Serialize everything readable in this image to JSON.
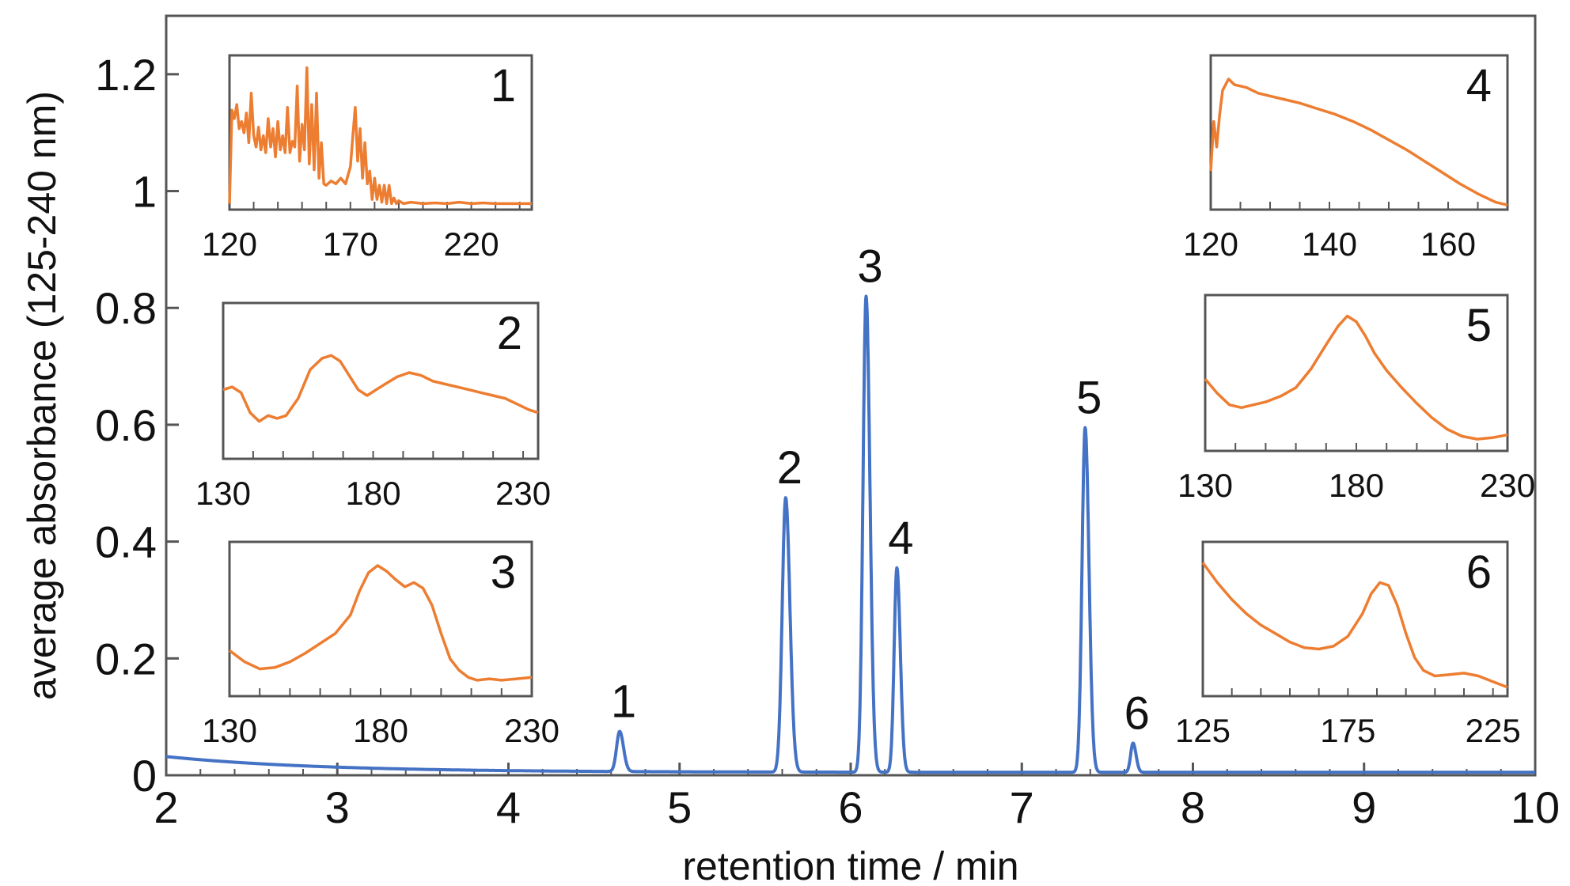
{
  "chart_data": [
    {
      "type": "line",
      "xlabel": "retention time / min",
      "ylabel": "average absorbance (125-240 nm)",
      "xlim": [
        2,
        10
      ],
      "ylim": [
        0,
        1.3
      ],
      "xticks": [
        "2",
        "3",
        "4",
        "5",
        "6",
        "7",
        "8",
        "9",
        "10"
      ],
      "yticks": [
        {
          "value": 0,
          "label": "0"
        },
        {
          "value": 0.2,
          "label": "0.2"
        },
        {
          "value": 0.4,
          "label": "0.4"
        },
        {
          "value": 0.6,
          "label": "0.6"
        },
        {
          "value": 0.8,
          "label": "0.8"
        },
        {
          "value": 1.0,
          "label": "1"
        },
        {
          "value": 1.2,
          "label": "1.2"
        }
      ],
      "grid": false,
      "color": "#4472c4",
      "peaks": [
        {
          "label": "1",
          "x": 4.65,
          "y": 0.075
        },
        {
          "label": "2",
          "x": 5.62,
          "y": 0.475
        },
        {
          "label": "3",
          "x": 6.09,
          "y": 0.82
        },
        {
          "label": "4",
          "x": 6.27,
          "y": 0.355
        },
        {
          "label": "5",
          "x": 7.37,
          "y": 0.595
        },
        {
          "label": "6",
          "x": 7.65,
          "y": 0.055
        }
      ]
    },
    {
      "type": "line",
      "label": "1",
      "color": "#ed7d31",
      "xlim": [
        120,
        245
      ],
      "xticks": [
        "120",
        "170",
        "220"
      ],
      "x": [
        120,
        121,
        122,
        123,
        124,
        125,
        126,
        127,
        128,
        129,
        130,
        131,
        132,
        133,
        134,
        135,
        136,
        137,
        138,
        139,
        140,
        141,
        142,
        143,
        144,
        145,
        146,
        147,
        148,
        149,
        150,
        151,
        152,
        153,
        154,
        155,
        156,
        157,
        158,
        159,
        160,
        162,
        164,
        166,
        168,
        170,
        171,
        172,
        173,
        174,
        175,
        176,
        177,
        178,
        179,
        180,
        181,
        182,
        183,
        184,
        185,
        186,
        187,
        188,
        189,
        190,
        192,
        195,
        200,
        205,
        210,
        215,
        220,
        225,
        230,
        235,
        240,
        245
      ],
      "y": [
        0.02,
        0.68,
        0.62,
        0.72,
        0.55,
        0.6,
        0.52,
        0.66,
        0.45,
        0.8,
        0.5,
        0.42,
        0.56,
        0.4,
        0.5,
        0.38,
        0.62,
        0.42,
        0.55,
        0.35,
        0.6,
        0.4,
        0.5,
        0.38,
        0.7,
        0.38,
        0.46,
        0.42,
        0.85,
        0.32,
        0.58,
        0.4,
        0.98,
        0.3,
        0.72,
        0.26,
        0.8,
        0.2,
        0.45,
        0.16,
        0.15,
        0.18,
        0.16,
        0.2,
        0.16,
        0.28,
        0.5,
        0.7,
        0.32,
        0.55,
        0.2,
        0.45,
        0.16,
        0.25,
        0.05,
        0.2,
        0.05,
        0.15,
        0.03,
        0.15,
        0.02,
        0.15,
        0.02,
        0.06,
        0.02,
        0.04,
        0.02,
        0.03,
        0.02,
        0.025,
        0.02,
        0.03,
        0.02,
        0.025,
        0.02,
        0.02,
        0.02,
        0.02
      ]
    },
    {
      "type": "line",
      "label": "2",
      "color": "#ed7d31",
      "xlim": [
        130,
        235
      ],
      "xticks": [
        "130",
        "180",
        "230"
      ],
      "x": [
        130,
        133,
        136,
        139,
        142,
        145,
        148,
        151,
        155,
        159,
        163,
        166,
        169,
        172,
        175,
        178,
        181,
        184,
        188,
        192,
        196,
        200,
        204,
        208,
        212,
        216,
        220,
        224,
        228,
        232,
        235
      ],
      "y": [
        0.46,
        0.48,
        0.44,
        0.3,
        0.24,
        0.28,
        0.26,
        0.28,
        0.4,
        0.6,
        0.68,
        0.7,
        0.66,
        0.56,
        0.46,
        0.42,
        0.46,
        0.5,
        0.55,
        0.58,
        0.56,
        0.52,
        0.5,
        0.48,
        0.46,
        0.44,
        0.42,
        0.4,
        0.36,
        0.32,
        0.3
      ]
    },
    {
      "type": "line",
      "label": "3",
      "color": "#ed7d31",
      "xlim": [
        130,
        230
      ],
      "xticks": [
        "130",
        "180",
        "230"
      ],
      "x": [
        130,
        135,
        140,
        145,
        150,
        155,
        160,
        165,
        170,
        173,
        176,
        179,
        182,
        185,
        188,
        191,
        194,
        197,
        200,
        203,
        206,
        209,
        212,
        216,
        220,
        225,
        230
      ],
      "y": [
        0.3,
        0.22,
        0.17,
        0.18,
        0.22,
        0.28,
        0.35,
        0.42,
        0.55,
        0.72,
        0.85,
        0.9,
        0.86,
        0.8,
        0.75,
        0.78,
        0.74,
        0.62,
        0.42,
        0.24,
        0.16,
        0.11,
        0.09,
        0.1,
        0.09,
        0.1,
        0.11
      ]
    },
    {
      "type": "line",
      "label": "4",
      "color": "#ed7d31",
      "xlim": [
        120,
        170
      ],
      "xticks": [
        "120",
        "140",
        "160"
      ],
      "x": [
        120,
        120.5,
        121,
        121.5,
        122,
        123,
        124,
        126,
        128,
        130,
        132,
        135,
        138,
        141,
        144,
        147,
        150,
        153,
        156,
        159,
        162,
        165,
        168,
        170
      ],
      "y": [
        0.25,
        0.6,
        0.42,
        0.65,
        0.82,
        0.9,
        0.86,
        0.84,
        0.8,
        0.78,
        0.76,
        0.73,
        0.69,
        0.65,
        0.6,
        0.54,
        0.47,
        0.4,
        0.32,
        0.24,
        0.16,
        0.09,
        0.03,
        0.01
      ]
    },
    {
      "type": "line",
      "label": "5",
      "color": "#ed7d31",
      "xlim": [
        130,
        230
      ],
      "xticks": [
        "130",
        "180",
        "230"
      ],
      "x": [
        130,
        134,
        138,
        142,
        146,
        150,
        155,
        160,
        165,
        170,
        174,
        177,
        180,
        183,
        186,
        190,
        195,
        200,
        205,
        210,
        215,
        220,
        225,
        230
      ],
      "y": [
        0.48,
        0.38,
        0.3,
        0.28,
        0.3,
        0.32,
        0.36,
        0.42,
        0.55,
        0.72,
        0.85,
        0.92,
        0.88,
        0.78,
        0.66,
        0.54,
        0.42,
        0.31,
        0.21,
        0.13,
        0.08,
        0.06,
        0.07,
        0.09
      ]
    },
    {
      "type": "line",
      "label": "6",
      "color": "#ed7d31",
      "xlim": [
        125,
        230
      ],
      "xticks": [
        "125",
        "175",
        "225"
      ],
      "x": [
        125,
        130,
        135,
        140,
        145,
        150,
        155,
        160,
        165,
        170,
        175,
        180,
        183,
        186,
        189,
        192,
        195,
        198,
        201,
        205,
        210,
        215,
        220,
        225,
        230
      ],
      "y": [
        0.92,
        0.78,
        0.66,
        0.56,
        0.48,
        0.42,
        0.36,
        0.32,
        0.31,
        0.33,
        0.4,
        0.56,
        0.7,
        0.78,
        0.76,
        0.62,
        0.42,
        0.25,
        0.16,
        0.12,
        0.13,
        0.14,
        0.12,
        0.08,
        0.04
      ]
    }
  ]
}
